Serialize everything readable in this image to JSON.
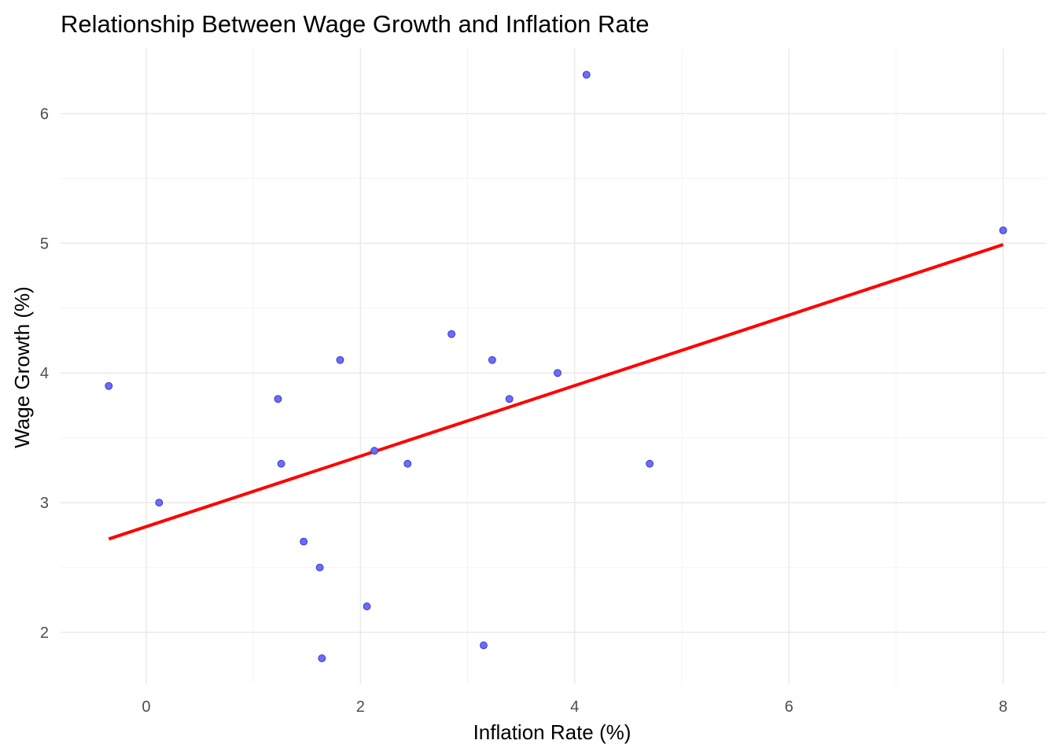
{
  "chart_data": {
    "type": "scatter",
    "title": "Relationship Between Wage Growth and Inflation Rate",
    "xlabel": "Inflation Rate (%)",
    "ylabel": "Wage Growth (%)",
    "xlim": [
      -0.8,
      8.4
    ],
    "ylim": [
      1.6,
      6.5
    ],
    "x_ticks": [
      0,
      2,
      4,
      6,
      8
    ],
    "x_tick_labels": [
      "0",
      "2",
      "4",
      "6",
      "8"
    ],
    "y_ticks": [
      2,
      3,
      4,
      5,
      6
    ],
    "y_tick_labels": [
      "2",
      "3",
      "4",
      "5",
      "6"
    ],
    "grid": true,
    "points": [
      {
        "x": -0.35,
        "y": 3.9
      },
      {
        "x": 0.12,
        "y": 3.0
      },
      {
        "x": 1.23,
        "y": 3.8
      },
      {
        "x": 1.26,
        "y": 3.3
      },
      {
        "x": 1.47,
        "y": 2.7
      },
      {
        "x": 1.62,
        "y": 2.5
      },
      {
        "x": 1.64,
        "y": 1.8
      },
      {
        "x": 1.81,
        "y": 4.1
      },
      {
        "x": 2.06,
        "y": 2.2
      },
      {
        "x": 2.13,
        "y": 3.4
      },
      {
        "x": 2.44,
        "y": 3.3
      },
      {
        "x": 2.85,
        "y": 4.3
      },
      {
        "x": 3.15,
        "y": 1.9
      },
      {
        "x": 3.23,
        "y": 4.1
      },
      {
        "x": 3.39,
        "y": 3.8
      },
      {
        "x": 3.84,
        "y": 4.0
      },
      {
        "x": 4.11,
        "y": 6.3
      },
      {
        "x": 4.7,
        "y": 3.3
      },
      {
        "x": 8.0,
        "y": 5.1
      }
    ],
    "trend_line": {
      "x": [
        -0.35,
        8.0
      ],
      "y": [
        2.72,
        4.99
      ]
    },
    "colors": {
      "point_fill": "#6b6bff",
      "point_stroke": "#2a2ab0",
      "trend_line": "#ff0000",
      "grid_major": "#ebebeb",
      "grid_minor": "#f4f4f4"
    }
  }
}
